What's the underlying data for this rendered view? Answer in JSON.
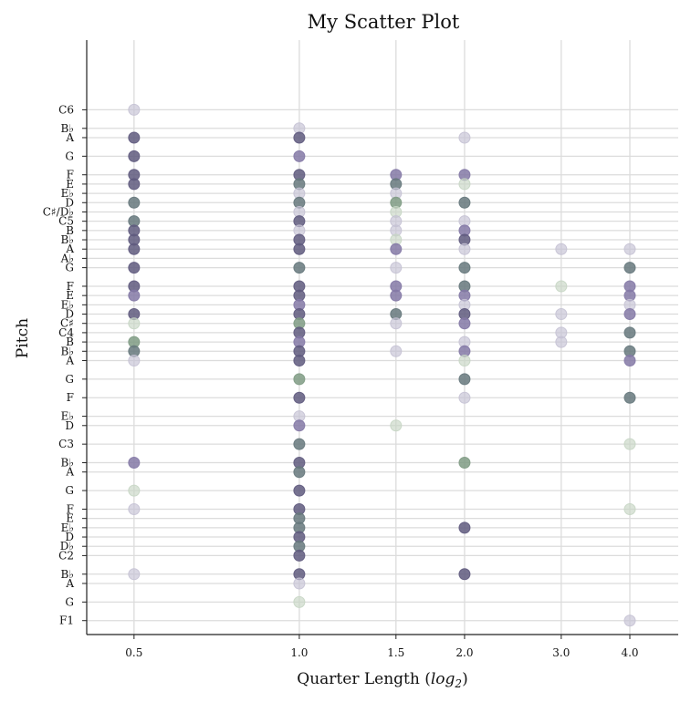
{
  "chart_data": {
    "type": "scatter",
    "title": "My Scatter Plot",
    "xlabel": "Quarter Length (log2)",
    "xlabel_parts": {
      "text": "Quarter Length (",
      "math": "log",
      "sub": "2",
      "close": ")"
    },
    "ylabel": "Pitch",
    "x_scale": "log2",
    "x_ticks": [
      0.5,
      1.0,
      1.5,
      2.0,
      3.0,
      4.0
    ],
    "x_tick_labels": [
      "0.5",
      "1.0",
      "1.5",
      "2.0",
      "3.0",
      "4.0"
    ],
    "xlim": [
      0.41,
      4.9
    ],
    "ylim": [
      27.5,
      91.5
    ],
    "grid": true,
    "y_ticks": [
      {
        "label": "F1",
        "midi": 29
      },
      {
        "label": "G",
        "midi": 31
      },
      {
        "label": "A",
        "midi": 33
      },
      {
        "label": "B♭",
        "midi": 34
      },
      {
        "label": "C2",
        "midi": 36
      },
      {
        "label": "D♭",
        "midi": 37
      },
      {
        "label": "D",
        "midi": 38
      },
      {
        "label": "E♭",
        "midi": 39
      },
      {
        "label": "E",
        "midi": 40
      },
      {
        "label": "F",
        "midi": 41
      },
      {
        "label": "G",
        "midi": 43
      },
      {
        "label": "A",
        "midi": 45
      },
      {
        "label": "B♭",
        "midi": 46
      },
      {
        "label": "C3",
        "midi": 48
      },
      {
        "label": "D",
        "midi": 50
      },
      {
        "label": "E♭",
        "midi": 51
      },
      {
        "label": "F",
        "midi": 53
      },
      {
        "label": "G",
        "midi": 55
      },
      {
        "label": "A",
        "midi": 57
      },
      {
        "label": "B♭",
        "midi": 58
      },
      {
        "label": "B",
        "midi": 59
      },
      {
        "label": "C4",
        "midi": 60
      },
      {
        "label": "C♯",
        "midi": 61
      },
      {
        "label": "D",
        "midi": 62
      },
      {
        "label": "E♭",
        "midi": 63
      },
      {
        "label": "E",
        "midi": 64
      },
      {
        "label": "F",
        "midi": 65
      },
      {
        "label": "G",
        "midi": 67
      },
      {
        "label": "A♭",
        "midi": 68
      },
      {
        "label": "A",
        "midi": 69
      },
      {
        "label": "B♭",
        "midi": 70
      },
      {
        "label": "B",
        "midi": 71
      },
      {
        "label": "C5",
        "midi": 72
      },
      {
        "label": "C♯/D♭",
        "midi": 73
      },
      {
        "label": "D",
        "midi": 74
      },
      {
        "label": "E♭",
        "midi": 75
      },
      {
        "label": "E",
        "midi": 76
      },
      {
        "label": "F",
        "midi": 77
      },
      {
        "label": "G",
        "midi": 79
      },
      {
        "label": "A",
        "midi": 81
      },
      {
        "label": "B♭",
        "midi": 82
      },
      {
        "label": "C6",
        "midi": 84
      }
    ],
    "colors": {
      "strong": "#5f5a7e",
      "purple": "#8479a6",
      "green": "#7f9b84",
      "teal": "#66787c",
      "light": "#c5c2d4",
      "light_green": "#c7d6c4",
      "spine": "#222222",
      "grid": "#dcdcdc"
    },
    "points": [
      {
        "x": 0.5,
        "y": 84,
        "c": "light"
      },
      {
        "x": 0.5,
        "y": 81,
        "c": "strong"
      },
      {
        "x": 0.5,
        "y": 79,
        "c": "strong"
      },
      {
        "x": 0.5,
        "y": 77,
        "c": "strong"
      },
      {
        "x": 0.5,
        "y": 76,
        "c": "strong"
      },
      {
        "x": 0.5,
        "y": 74,
        "c": "teal"
      },
      {
        "x": 0.5,
        "y": 72,
        "c": "teal"
      },
      {
        "x": 0.5,
        "y": 71,
        "c": "strong"
      },
      {
        "x": 0.5,
        "y": 70,
        "c": "strong"
      },
      {
        "x": 0.5,
        "y": 69,
        "c": "strong"
      },
      {
        "x": 0.5,
        "y": 67,
        "c": "strong"
      },
      {
        "x": 0.5,
        "y": 65,
        "c": "strong"
      },
      {
        "x": 0.5,
        "y": 64,
        "c": "purple"
      },
      {
        "x": 0.5,
        "y": 62,
        "c": "strong"
      },
      {
        "x": 0.5,
        "y": 61,
        "c": "light_green"
      },
      {
        "x": 0.5,
        "y": 59,
        "c": "green"
      },
      {
        "x": 0.5,
        "y": 58,
        "c": "teal"
      },
      {
        "x": 0.5,
        "y": 57,
        "c": "light"
      },
      {
        "x": 0.5,
        "y": 46,
        "c": "purple"
      },
      {
        "x": 0.5,
        "y": 43,
        "c": "light_green"
      },
      {
        "x": 0.5,
        "y": 41,
        "c": "light"
      },
      {
        "x": 0.5,
        "y": 34,
        "c": "light"
      },
      {
        "x": 1.0,
        "y": 82,
        "c": "light"
      },
      {
        "x": 1.0,
        "y": 81,
        "c": "strong"
      },
      {
        "x": 1.0,
        "y": 79,
        "c": "purple"
      },
      {
        "x": 1.0,
        "y": 77,
        "c": "strong"
      },
      {
        "x": 1.0,
        "y": 76,
        "c": "teal"
      },
      {
        "x": 1.0,
        "y": 75,
        "c": "light"
      },
      {
        "x": 1.0,
        "y": 74,
        "c": "teal"
      },
      {
        "x": 1.0,
        "y": 73,
        "c": "light"
      },
      {
        "x": 1.0,
        "y": 72,
        "c": "strong"
      },
      {
        "x": 1.0,
        "y": 71,
        "c": "light"
      },
      {
        "x": 1.0,
        "y": 70,
        "c": "strong"
      },
      {
        "x": 1.0,
        "y": 69,
        "c": "strong"
      },
      {
        "x": 1.0,
        "y": 67,
        "c": "teal"
      },
      {
        "x": 1.0,
        "y": 65,
        "c": "strong"
      },
      {
        "x": 1.0,
        "y": 64,
        "c": "strong"
      },
      {
        "x": 1.0,
        "y": 63,
        "c": "purple"
      },
      {
        "x": 1.0,
        "y": 62,
        "c": "strong"
      },
      {
        "x": 1.0,
        "y": 61,
        "c": "green"
      },
      {
        "x": 1.0,
        "y": 60,
        "c": "strong"
      },
      {
        "x": 1.0,
        "y": 59,
        "c": "purple"
      },
      {
        "x": 1.0,
        "y": 58,
        "c": "strong"
      },
      {
        "x": 1.0,
        "y": 57,
        "c": "strong"
      },
      {
        "x": 1.0,
        "y": 55,
        "c": "green"
      },
      {
        "x": 1.0,
        "y": 53,
        "c": "strong"
      },
      {
        "x": 1.0,
        "y": 51,
        "c": "light"
      },
      {
        "x": 1.0,
        "y": 50,
        "c": "purple"
      },
      {
        "x": 1.0,
        "y": 48,
        "c": "teal"
      },
      {
        "x": 1.0,
        "y": 46,
        "c": "strong"
      },
      {
        "x": 1.0,
        "y": 45,
        "c": "teal"
      },
      {
        "x": 1.0,
        "y": 43,
        "c": "strong"
      },
      {
        "x": 1.0,
        "y": 41,
        "c": "strong"
      },
      {
        "x": 1.0,
        "y": 40,
        "c": "teal"
      },
      {
        "x": 1.0,
        "y": 39,
        "c": "teal"
      },
      {
        "x": 1.0,
        "y": 38,
        "c": "strong"
      },
      {
        "x": 1.0,
        "y": 37,
        "c": "teal"
      },
      {
        "x": 1.0,
        "y": 36,
        "c": "strong"
      },
      {
        "x": 1.0,
        "y": 34,
        "c": "strong"
      },
      {
        "x": 1.0,
        "y": 33,
        "c": "light"
      },
      {
        "x": 1.0,
        "y": 31,
        "c": "light_green"
      },
      {
        "x": 1.5,
        "y": 77,
        "c": "purple"
      },
      {
        "x": 1.5,
        "y": 76,
        "c": "teal"
      },
      {
        "x": 1.5,
        "y": 75,
        "c": "light"
      },
      {
        "x": 1.5,
        "y": 74,
        "c": "green"
      },
      {
        "x": 1.5,
        "y": 73,
        "c": "light_green"
      },
      {
        "x": 1.5,
        "y": 72,
        "c": "light"
      },
      {
        "x": 1.5,
        "y": 71,
        "c": "light"
      },
      {
        "x": 1.5,
        "y": 70,
        "c": "light_green"
      },
      {
        "x": 1.5,
        "y": 69,
        "c": "purple"
      },
      {
        "x": 1.5,
        "y": 67,
        "c": "light"
      },
      {
        "x": 1.5,
        "y": 65,
        "c": "purple"
      },
      {
        "x": 1.5,
        "y": 64,
        "c": "purple"
      },
      {
        "x": 1.5,
        "y": 62,
        "c": "teal"
      },
      {
        "x": 1.5,
        "y": 61,
        "c": "light"
      },
      {
        "x": 1.5,
        "y": 58,
        "c": "light"
      },
      {
        "x": 1.5,
        "y": 50,
        "c": "light_green"
      },
      {
        "x": 2.0,
        "y": 81,
        "c": "light"
      },
      {
        "x": 2.0,
        "y": 77,
        "c": "purple"
      },
      {
        "x": 2.0,
        "y": 76,
        "c": "light_green"
      },
      {
        "x": 2.0,
        "y": 74,
        "c": "teal"
      },
      {
        "x": 2.0,
        "y": 72,
        "c": "light"
      },
      {
        "x": 2.0,
        "y": 71,
        "c": "purple"
      },
      {
        "x": 2.0,
        "y": 70,
        "c": "strong"
      },
      {
        "x": 2.0,
        "y": 69,
        "c": "light"
      },
      {
        "x": 2.0,
        "y": 67,
        "c": "teal"
      },
      {
        "x": 2.0,
        "y": 65,
        "c": "teal"
      },
      {
        "x": 2.0,
        "y": 64,
        "c": "purple"
      },
      {
        "x": 2.0,
        "y": 63,
        "c": "light"
      },
      {
        "x": 2.0,
        "y": 62,
        "c": "strong"
      },
      {
        "x": 2.0,
        "y": 61,
        "c": "purple"
      },
      {
        "x": 2.0,
        "y": 59,
        "c": "light"
      },
      {
        "x": 2.0,
        "y": 58,
        "c": "purple"
      },
      {
        "x": 2.0,
        "y": 57,
        "c": "light_green"
      },
      {
        "x": 2.0,
        "y": 55,
        "c": "teal"
      },
      {
        "x": 2.0,
        "y": 53,
        "c": "light"
      },
      {
        "x": 2.0,
        "y": 46,
        "c": "green"
      },
      {
        "x": 2.0,
        "y": 39,
        "c": "strong"
      },
      {
        "x": 2.0,
        "y": 34,
        "c": "strong"
      },
      {
        "x": 3.0,
        "y": 69,
        "c": "light"
      },
      {
        "x": 3.0,
        "y": 65,
        "c": "light_green"
      },
      {
        "x": 3.0,
        "y": 62,
        "c": "light"
      },
      {
        "x": 3.0,
        "y": 60,
        "c": "light"
      },
      {
        "x": 3.0,
        "y": 59,
        "c": "light"
      },
      {
        "x": 4.0,
        "y": 69,
        "c": "light"
      },
      {
        "x": 4.0,
        "y": 67,
        "c": "teal"
      },
      {
        "x": 4.0,
        "y": 65,
        "c": "purple"
      },
      {
        "x": 4.0,
        "y": 64,
        "c": "purple"
      },
      {
        "x": 4.0,
        "y": 63,
        "c": "light"
      },
      {
        "x": 4.0,
        "y": 62,
        "c": "purple"
      },
      {
        "x": 4.0,
        "y": 60,
        "c": "teal"
      },
      {
        "x": 4.0,
        "y": 58,
        "c": "teal"
      },
      {
        "x": 4.0,
        "y": 57,
        "c": "purple"
      },
      {
        "x": 4.0,
        "y": 53,
        "c": "teal"
      },
      {
        "x": 4.0,
        "y": 48,
        "c": "light_green"
      },
      {
        "x": 4.0,
        "y": 41,
        "c": "light_green"
      },
      {
        "x": 4.0,
        "y": 29,
        "c": "light"
      }
    ]
  }
}
